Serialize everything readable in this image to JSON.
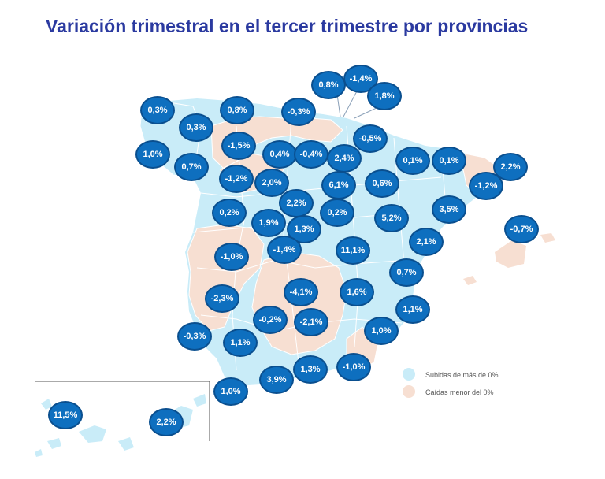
{
  "title": "Variación trimestral en el tercer trimestre por provincias",
  "colors": {
    "rise": "#c9ecf8",
    "fall": "#f7dfd2",
    "bubble": "#0e6fbf",
    "title": "#2b3aa0"
  },
  "legend": {
    "rise_label": "Subidas de más de 0%",
    "fall_label": "Caídas menor del 0%"
  },
  "provinces": [
    {
      "value": "0,3%",
      "cat": "rise"
    },
    {
      "value": "0,8%",
      "cat": "rise"
    },
    {
      "value": "-0,3%",
      "cat": "fall"
    },
    {
      "value": "0,8%",
      "cat": "rise"
    },
    {
      "value": "-1,4%",
      "cat": "fall"
    },
    {
      "value": "1,8%",
      "cat": "rise"
    },
    {
      "value": "0,3%",
      "cat": "rise"
    },
    {
      "value": "-0,5%",
      "cat": "fall"
    },
    {
      "value": "-1,5%",
      "cat": "fall"
    },
    {
      "value": "1,0%",
      "cat": "rise"
    },
    {
      "value": "0,4%",
      "cat": "rise"
    },
    {
      "value": "-0,4%",
      "cat": "fall"
    },
    {
      "value": "2,4%",
      "cat": "rise"
    },
    {
      "value": "0,1%",
      "cat": "rise"
    },
    {
      "value": "0,1%",
      "cat": "rise"
    },
    {
      "value": "2,2%",
      "cat": "rise"
    },
    {
      "value": "0,7%",
      "cat": "rise"
    },
    {
      "value": "-1,2%",
      "cat": "fall"
    },
    {
      "value": "2,0%",
      "cat": "rise"
    },
    {
      "value": "6,1%",
      "cat": "rise"
    },
    {
      "value": "0,6%",
      "cat": "rise"
    },
    {
      "value": "-1,2%",
      "cat": "fall"
    },
    {
      "value": "2,2%",
      "cat": "rise"
    },
    {
      "value": "0,2%",
      "cat": "rise"
    },
    {
      "value": "0,2%",
      "cat": "rise"
    },
    {
      "value": "5,2%",
      "cat": "rise"
    },
    {
      "value": "3,5%",
      "cat": "rise"
    },
    {
      "value": "1,9%",
      "cat": "rise"
    },
    {
      "value": "1,3%",
      "cat": "rise"
    },
    {
      "value": "-0,7%",
      "cat": "fall"
    },
    {
      "value": "-1,0%",
      "cat": "fall"
    },
    {
      "value": "-1,4%",
      "cat": "fall"
    },
    {
      "value": "11,1%",
      "cat": "rise"
    },
    {
      "value": "2,1%",
      "cat": "rise"
    },
    {
      "value": "0,7%",
      "cat": "rise"
    },
    {
      "value": "-4,1%",
      "cat": "fall"
    },
    {
      "value": "1,6%",
      "cat": "rise"
    },
    {
      "value": "-2,3%",
      "cat": "fall"
    },
    {
      "value": "1,1%",
      "cat": "rise"
    },
    {
      "value": "-0,2%",
      "cat": "fall"
    },
    {
      "value": "-2,1%",
      "cat": "fall"
    },
    {
      "value": "-0,3%",
      "cat": "fall"
    },
    {
      "value": "1,1%",
      "cat": "rise"
    },
    {
      "value": "1,0%",
      "cat": "rise"
    },
    {
      "value": "1,3%",
      "cat": "rise"
    },
    {
      "value": "-1,0%",
      "cat": "fall"
    },
    {
      "value": "3,9%",
      "cat": "rise"
    },
    {
      "value": "1,0%",
      "cat": "rise"
    },
    {
      "value": "11,5%",
      "cat": "rise"
    },
    {
      "value": "2,2%",
      "cat": "rise"
    }
  ]
}
